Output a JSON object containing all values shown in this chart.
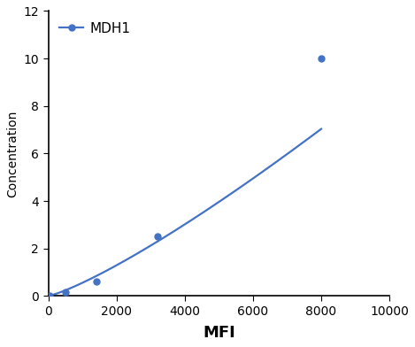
{
  "x_data": [
    50,
    500,
    1400,
    3200,
    8000
  ],
  "y_data": [
    0.02,
    0.15,
    0.6,
    2.5,
    10.0
  ],
  "line_color": "#4472C4",
  "marker_color": "#4472C4",
  "marker_style": "o",
  "marker_size": 5,
  "line_width": 1.6,
  "xlabel": "MFI",
  "ylabel": "Concentration",
  "xlim": [
    0,
    10000
  ],
  "ylim": [
    0,
    12
  ],
  "xticks": [
    0,
    2000,
    4000,
    6000,
    8000,
    10000
  ],
  "yticks": [
    0,
    2,
    4,
    6,
    8,
    10,
    12
  ],
  "legend_label": "MDH1",
  "xlabel_fontsize": 13,
  "ylabel_fontsize": 10,
  "tick_fontsize": 10,
  "legend_fontsize": 11,
  "background_color": "#ffffff"
}
